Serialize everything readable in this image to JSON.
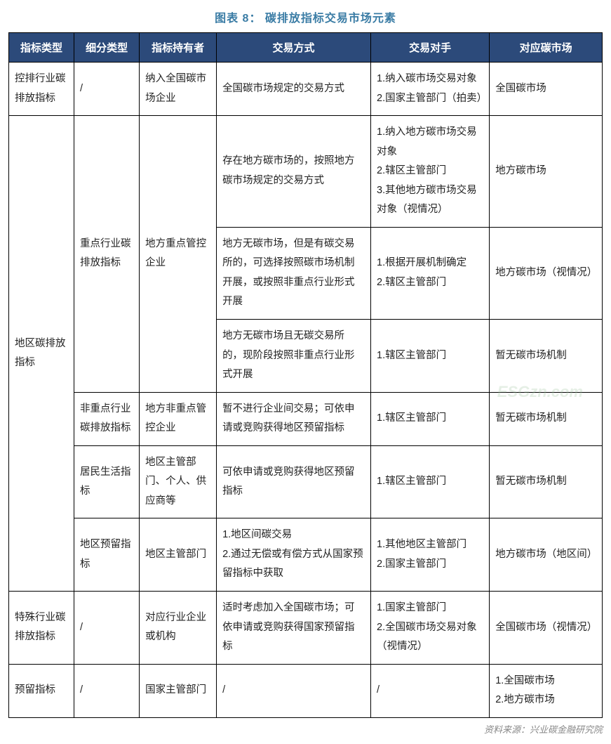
{
  "title": "图表 8：  碳排放指标交易市场元素",
  "source": "资料来源：兴业碳金融研究院",
  "watermark": "ESGzn.com",
  "columns": [
    "指标类型",
    "细分类型",
    "指标持有者",
    "交易方式",
    "交易对手",
    "对应碳市场"
  ],
  "rows": {
    "r1": {
      "c1": "控排行业碳排放指标",
      "c2": "/",
      "c3": "纳入全国碳市场企业",
      "c4": "全国碳市场规定的交易方式",
      "c5": "1.纳入碳市场交易对象\n2.国家主管部门（拍卖）",
      "c6": "全国碳市场"
    },
    "r2": {
      "c1": "地区碳排放指标",
      "c2": "重点行业碳排放指标",
      "c3": "地方重点管控企业",
      "c4": "存在地方碳市场的，按照地方碳市场规定的交易方式",
      "c5": "1.纳入地方碳市场交易对象\n2.辖区主管部门\n3.其他地方碳市场交易对象（视情况）",
      "c6": "地方碳市场"
    },
    "r3": {
      "c4": "地方无碳市场，但是有碳交易所的，可选择按照碳市场机制开展，或按照非重点行业形式开展",
      "c5": "1.根据开展机制确定\n2.辖区主管部门",
      "c6": "地方碳市场（视情况）"
    },
    "r4": {
      "c4": "地方无碳市场且无碳交易所的，现阶段按照非重点行业形式开展",
      "c5": "1.辖区主管部门",
      "c6": "暂无碳市场机制"
    },
    "r5": {
      "c2": "非重点行业碳排放指标",
      "c3": "地方非重点管控企业",
      "c4": "暂不进行企业间交易；可依申请或竞购获得地区预留指标",
      "c5": "1.辖区主管部门",
      "c6": "暂无碳市场机制"
    },
    "r6": {
      "c2": "居民生活指标",
      "c3": "地区主管部门、个人、供应商等",
      "c4": "可依申请或竞购获得地区预留指标",
      "c5": "1.辖区主管部门",
      "c6": "暂无碳市场机制"
    },
    "r7": {
      "c2": "地区预留指标",
      "c3": "地区主管部门",
      "c4": "1.地区间碳交易\n2.通过无偿或有偿方式从国家预留指标中获取",
      "c5": "1.其他地区主管部门\n2.国家主管部门",
      "c6": "地方碳市场（地区间）"
    },
    "r8": {
      "c1": "特殊行业碳排放指标",
      "c2": "/",
      "c3": "对应行业企业或机构",
      "c4": "适时考虑加入全国碳市场；可依申请或竞购获得国家预留指标",
      "c5": "1.国家主管部门\n2.全国碳市场交易对象（视情况）",
      "c6": "全国碳市场（视情况）"
    },
    "r9": {
      "c1": "预留指标",
      "c2": "/",
      "c3": "国家主管部门",
      "c4": "/",
      "c5": "/",
      "c6": "1.全国碳市场\n2.地方碳市场"
    }
  },
  "style": {
    "header_bg": "#2c4a7a",
    "header_fg": "#ffffff",
    "border_color": "#000000",
    "title_color": "#3a7ca5",
    "source_color": "#888888",
    "font_family": "Microsoft YaHei",
    "title_fontsize": 16,
    "cell_fontsize": 14.5,
    "line_height": 1.9
  }
}
